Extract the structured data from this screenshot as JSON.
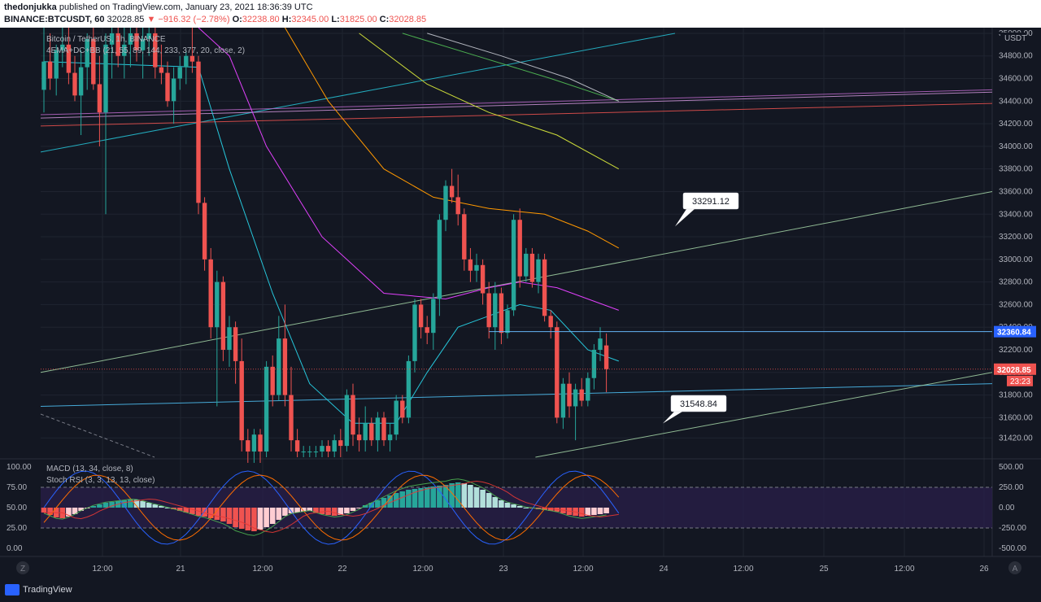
{
  "header": {
    "author": "thedonjukka",
    "published": "published on TradingView.com, January 23, 2021 18:36:39 UTC",
    "symbol": "BINANCE:BTCUSDT, 60",
    "last": "32028.85",
    "change": "▼ −916.32 (−2.78%)",
    "open_label": "O:",
    "open": "32238.80",
    "high_label": "H:",
    "high": "32345.00",
    "low_label": "L:",
    "low": "31825.00",
    "close_label": "C:",
    "close": "32028.85"
  },
  "legend": {
    "title": "Bitcoin / TetherUS, 1h, BINANCE",
    "indicators": "4EMA+DC+BB (21, 55, 89, 144, 233, 377, 20, close, 2)",
    "macd": "MACD (13, 34, close, 8)",
    "stoch": "Stoch RSI (3, 3, 13, 13, close)"
  },
  "footer": {
    "brand": "TradingView",
    "z_button": "Z",
    "a_button": "A"
  },
  "colors": {
    "background": "#131722",
    "up": "#26a69a",
    "down": "#ef5350",
    "grid": "#1f2430",
    "axis_text": "#b2b5be",
    "price_tag": "#ef5350",
    "level_tag": "#2962ff"
  },
  "chart_data": {
    "type": "candlestick",
    "price_axis": {
      "unit": "USDT",
      "ticks": [
        "35000.00",
        "34800.00",
        "34600.00",
        "34400.00",
        "34200.00",
        "34000.00",
        "33800.00",
        "33600.00",
        "33400.00",
        "33200.00",
        "33000.00",
        "32800.00",
        "32600.00",
        "32400.00",
        "32200.00",
        "32000.00",
        "31800.00",
        "31600.00",
        "31420.00"
      ],
      "ylim": [
        31250,
        35050
      ]
    },
    "time_axis": {
      "ticks": [
        "12:00",
        "21",
        "12:00",
        "22",
        "12:00",
        "23",
        "12:00",
        "24",
        "12:00",
        "25",
        "12:00",
        "26"
      ]
    },
    "candles": [
      {
        "o": 34500,
        "h": 35100,
        "l": 34300,
        "c": 34750
      },
      {
        "o": 34750,
        "h": 35000,
        "l": 34500,
        "c": 34600
      },
      {
        "o": 34600,
        "h": 34900,
        "l": 34450,
        "c": 34850
      },
      {
        "o": 34850,
        "h": 35050,
        "l": 34700,
        "c": 34900
      },
      {
        "o": 34900,
        "h": 35050,
        "l": 34550,
        "c": 34650
      },
      {
        "o": 34650,
        "h": 34800,
        "l": 34400,
        "c": 34450
      },
      {
        "o": 34450,
        "h": 34850,
        "l": 34100,
        "c": 34700
      },
      {
        "o": 34700,
        "h": 35000,
        "l": 34500,
        "c": 34950
      },
      {
        "o": 34950,
        "h": 35050,
        "l": 34500,
        "c": 34550
      },
      {
        "o": 34550,
        "h": 34800,
        "l": 34000,
        "c": 34300
      },
      {
        "o": 34300,
        "h": 35000,
        "l": 33400,
        "c": 34900
      },
      {
        "o": 34900,
        "h": 35050,
        "l": 34600,
        "c": 35000
      },
      {
        "o": 35000,
        "h": 35050,
        "l": 34700,
        "c": 34800
      },
      {
        "o": 34800,
        "h": 35050,
        "l": 34600,
        "c": 34900
      },
      {
        "o": 34900,
        "h": 35050,
        "l": 34700,
        "c": 35000
      },
      {
        "o": 35000,
        "h": 35050,
        "l": 34750,
        "c": 34850
      },
      {
        "o": 34850,
        "h": 35050,
        "l": 34600,
        "c": 34950
      },
      {
        "o": 34950,
        "h": 35050,
        "l": 34800,
        "c": 35000
      },
      {
        "o": 35000,
        "h": 35050,
        "l": 34600,
        "c": 34700
      },
      {
        "o": 34700,
        "h": 34900,
        "l": 34550,
        "c": 34650
      },
      {
        "o": 34650,
        "h": 34750,
        "l": 34350,
        "c": 34400
      },
      {
        "o": 34400,
        "h": 34700,
        "l": 34200,
        "c": 34600
      },
      {
        "o": 34600,
        "h": 34800,
        "l": 34500,
        "c": 34700
      },
      {
        "o": 34700,
        "h": 34850,
        "l": 34550,
        "c": 34800
      },
      {
        "o": 34800,
        "h": 35050,
        "l": 34650,
        "c": 34750
      },
      {
        "o": 34750,
        "h": 34800,
        "l": 33400,
        "c": 33500
      },
      {
        "o": 33500,
        "h": 33550,
        "l": 32900,
        "c": 33000
      },
      {
        "o": 33000,
        "h": 33100,
        "l": 32300,
        "c": 32400
      },
      {
        "o": 32400,
        "h": 32900,
        "l": 31700,
        "c": 32800
      },
      {
        "o": 32800,
        "h": 32850,
        "l": 32100,
        "c": 32200
      },
      {
        "o": 32200,
        "h": 32500,
        "l": 32050,
        "c": 32400
      },
      {
        "o": 32400,
        "h": 32450,
        "l": 31900,
        "c": 32100
      },
      {
        "o": 32100,
        "h": 32300,
        "l": 31300,
        "c": 31400
      },
      {
        "o": 31400,
        "h": 31500,
        "l": 31200,
        "c": 31300
      },
      {
        "o": 31300,
        "h": 31500,
        "l": 31200,
        "c": 31450
      },
      {
        "o": 31450,
        "h": 31500,
        "l": 31200,
        "c": 31300
      },
      {
        "o": 31300,
        "h": 32100,
        "l": 31250,
        "c": 32050
      },
      {
        "o": 32050,
        "h": 32150,
        "l": 31700,
        "c": 31800
      },
      {
        "o": 31800,
        "h": 32500,
        "l": 31750,
        "c": 32300
      },
      {
        "o": 32300,
        "h": 32600,
        "l": 31700,
        "c": 31800
      },
      {
        "o": 31800,
        "h": 32050,
        "l": 31300,
        "c": 31400
      },
      {
        "o": 31400,
        "h": 31500,
        "l": 31250,
        "c": 31300
      },
      {
        "o": 31300,
        "h": 31350,
        "l": 31250,
        "c": 31300
      },
      {
        "o": 31300,
        "h": 31350,
        "l": 31250,
        "c": 31300
      },
      {
        "o": 31300,
        "h": 31350,
        "l": 31250,
        "c": 31300
      },
      {
        "o": 31300,
        "h": 31400,
        "l": 31250,
        "c": 31350
      },
      {
        "o": 31350,
        "h": 31400,
        "l": 31250,
        "c": 31300
      },
      {
        "o": 31300,
        "h": 31450,
        "l": 31250,
        "c": 31400
      },
      {
        "o": 31400,
        "h": 31500,
        "l": 31250,
        "c": 31350
      },
      {
        "o": 31350,
        "h": 31850,
        "l": 31300,
        "c": 31800
      },
      {
        "o": 31800,
        "h": 31900,
        "l": 31350,
        "c": 31450
      },
      {
        "o": 31450,
        "h": 31600,
        "l": 31300,
        "c": 31400
      },
      {
        "o": 31400,
        "h": 31700,
        "l": 31300,
        "c": 31550
      },
      {
        "o": 31550,
        "h": 31600,
        "l": 31350,
        "c": 31400
      },
      {
        "o": 31400,
        "h": 31650,
        "l": 31300,
        "c": 31600
      },
      {
        "o": 31600,
        "h": 31650,
        "l": 31350,
        "c": 31400
      },
      {
        "o": 31400,
        "h": 31550,
        "l": 31300,
        "c": 31450
      },
      {
        "o": 31450,
        "h": 31800,
        "l": 31400,
        "c": 31750
      },
      {
        "o": 31750,
        "h": 31800,
        "l": 31550,
        "c": 31600
      },
      {
        "o": 31600,
        "h": 32150,
        "l": 31550,
        "c": 32100
      },
      {
        "o": 32100,
        "h": 32650,
        "l": 32000,
        "c": 32600
      },
      {
        "o": 32600,
        "h": 32650,
        "l": 32300,
        "c": 32400
      },
      {
        "o": 32400,
        "h": 32500,
        "l": 32250,
        "c": 32350
      },
      {
        "o": 32350,
        "h": 32700,
        "l": 32200,
        "c": 32650
      },
      {
        "o": 32650,
        "h": 33400,
        "l": 32500,
        "c": 33350
      },
      {
        "o": 33350,
        "h": 33700,
        "l": 33250,
        "c": 33650
      },
      {
        "o": 33650,
        "h": 33800,
        "l": 33500,
        "c": 33550
      },
      {
        "o": 33550,
        "h": 33750,
        "l": 33300,
        "c": 33400
      },
      {
        "o": 33400,
        "h": 33450,
        "l": 32900,
        "c": 33000
      },
      {
        "o": 33000,
        "h": 33100,
        "l": 32800,
        "c": 32900
      },
      {
        "o": 32900,
        "h": 33050,
        "l": 32800,
        "c": 32950
      },
      {
        "o": 32950,
        "h": 33000,
        "l": 32600,
        "c": 32700
      },
      {
        "o": 32700,
        "h": 32800,
        "l": 32300,
        "c": 32400
      },
      {
        "o": 32400,
        "h": 32800,
        "l": 32200,
        "c": 32700
      },
      {
        "o": 32700,
        "h": 32750,
        "l": 32250,
        "c": 32350
      },
      {
        "o": 32350,
        "h": 32600,
        "l": 32300,
        "c": 32550
      },
      {
        "o": 32550,
        "h": 33400,
        "l": 32500,
        "c": 33350
      },
      {
        "o": 33350,
        "h": 33450,
        "l": 32750,
        "c": 32850
      },
      {
        "o": 32850,
        "h": 33100,
        "l": 32800,
        "c": 33050
      },
      {
        "o": 33050,
        "h": 33100,
        "l": 32750,
        "c": 32800
      },
      {
        "o": 32800,
        "h": 33050,
        "l": 32700,
        "c": 33000
      },
      {
        "o": 33000,
        "h": 33050,
        "l": 32450,
        "c": 32500
      },
      {
        "o": 32500,
        "h": 32550,
        "l": 32300,
        "c": 32400
      },
      {
        "o": 32400,
        "h": 32450,
        "l": 31550,
        "c": 31600
      },
      {
        "o": 31600,
        "h": 31950,
        "l": 31500,
        "c": 31900
      },
      {
        "o": 31900,
        "h": 32000,
        "l": 31600,
        "c": 31700
      },
      {
        "o": 31700,
        "h": 31900,
        "l": 31400,
        "c": 31850
      },
      {
        "o": 31850,
        "h": 31950,
        "l": 31700,
        "c": 31750
      },
      {
        "o": 31750,
        "h": 32000,
        "l": 31700,
        "c": 31950
      },
      {
        "o": 31950,
        "h": 32250,
        "l": 31850,
        "c": 32200
      },
      {
        "o": 32200,
        "h": 32400,
        "l": 32100,
        "c": 32300
      },
      {
        "o": 32238.8,
        "h": 32345,
        "l": 31825,
        "c": 32028.85
      }
    ],
    "ema_series": [
      {
        "color": "#26c6da",
        "values": [
          [
            0,
            34750
          ],
          [
            25,
            34700
          ],
          [
            30,
            33800
          ],
          [
            37,
            32700
          ],
          [
            43,
            31900
          ],
          [
            50,
            31550
          ],
          [
            57,
            31550
          ],
          [
            62,
            32000
          ],
          [
            67,
            32400
          ],
          [
            72,
            32500
          ],
          [
            77,
            32600
          ],
          [
            82,
            32550
          ],
          [
            88,
            32200
          ],
          [
            93,
            32100
          ]
        ]
      },
      {
        "color": "#e040fb",
        "values": [
          [
            25,
            35050
          ],
          [
            30,
            34800
          ],
          [
            36,
            34000
          ],
          [
            45,
            33200
          ],
          [
            55,
            32700
          ],
          [
            65,
            32650
          ],
          [
            72,
            32750
          ],
          [
            77,
            32800
          ],
          [
            83,
            32750
          ],
          [
            88,
            32650
          ],
          [
            93,
            32550
          ]
        ]
      },
      {
        "color": "#ff9800",
        "values": [
          [
            39,
            35050
          ],
          [
            46,
            34400
          ],
          [
            55,
            33800
          ],
          [
            63,
            33550
          ],
          [
            72,
            33450
          ],
          [
            81,
            33400
          ],
          [
            88,
            33250
          ],
          [
            93,
            33100
          ]
        ]
      },
      {
        "color": "#cddc39",
        "values": [
          [
            51,
            35000
          ],
          [
            62,
            34550
          ],
          [
            72,
            34300
          ],
          [
            83,
            34100
          ],
          [
            93,
            33800
          ]
        ]
      },
      {
        "color": "#4caf50",
        "values": [
          [
            58,
            35000
          ],
          [
            70,
            34800
          ],
          [
            82,
            34600
          ],
          [
            93,
            34400
          ]
        ]
      },
      {
        "color": "#b2b5be",
        "values": [
          [
            62,
            35000
          ],
          [
            74,
            34800
          ],
          [
            85,
            34600
          ],
          [
            93,
            34400
          ]
        ]
      }
    ],
    "trendlines": [
      {
        "name": "teal-line",
        "color": "#26c6da",
        "from": [
          0,
          33950
        ],
        "to": [
          100,
          35000
        ]
      },
      {
        "name": "green-line",
        "color": "#a5d6a7",
        "from": [
          0,
          32000
        ],
        "to": [
          150,
          33600
        ]
      },
      {
        "name": "blue-line",
        "color": "#4fc3f7",
        "from": [
          0,
          31700
        ],
        "to": [
          150,
          31900
        ]
      },
      {
        "name": "lower-line",
        "color": "#a5d6a7",
        "from": [
          78,
          31250
        ],
        "to": [
          150,
          32000
        ]
      },
      {
        "name": "purple-line-1",
        "color": "#ce93d8",
        "from": [
          0,
          34250
        ],
        "to": [
          150,
          34480
        ]
      },
      {
        "name": "purple-line-2",
        "color": "#ba68c8",
        "from": [
          0,
          34280
        ],
        "to": [
          150,
          34500
        ]
      },
      {
        "name": "red-line",
        "color": "#ef5350",
        "from": [
          0,
          34180
        ],
        "to": [
          150,
          34380
        ]
      }
    ],
    "horizontal_levels": [
      {
        "price": 32360.84,
        "label": "32360.84"
      }
    ],
    "last_price": {
      "price": 32028.85,
      "label": "32028.85",
      "countdown": "23:23"
    },
    "callouts": [
      {
        "label": "33291.12",
        "anchor_price": 33291.12
      },
      {
        "label": "31548.84",
        "anchor_price": 31548.84
      }
    ],
    "oscillator": {
      "left_ticks": [
        "100.00",
        "75.00",
        "50.00",
        "25.00",
        "0.00"
      ],
      "right_ticks": [
        "500.00",
        "250.00",
        "0.00",
        "-250.00",
        "-500.00"
      ],
      "band": [
        25,
        75
      ],
      "macd_hist": [
        -60,
        -90,
        -120,
        -130,
        -110,
        -80,
        -40,
        -10,
        20,
        40,
        60,
        70,
        80,
        90,
        100,
        95,
        80,
        60,
        40,
        20,
        0,
        -20,
        -40,
        -60,
        -80,
        -100,
        -110,
        -130,
        -150,
        -170,
        -200,
        -240,
        -260,
        -280,
        -290,
        -270,
        -240,
        -200,
        -150,
        -100,
        -70,
        -60,
        -50,
        -40,
        -60,
        -80,
        -90,
        -100,
        -90,
        -70,
        -40,
        -10,
        30,
        60,
        90,
        120,
        150,
        180,
        200,
        220,
        230,
        240,
        250,
        260,
        270,
        280,
        300,
        310,
        300,
        280,
        250,
        220,
        180,
        130,
        90,
        60,
        40,
        20,
        0,
        -10,
        -20,
        -30,
        -40,
        -50,
        -70,
        -90,
        -100,
        -110,
        -100,
        -90,
        -80,
        -70
      ]
    }
  }
}
